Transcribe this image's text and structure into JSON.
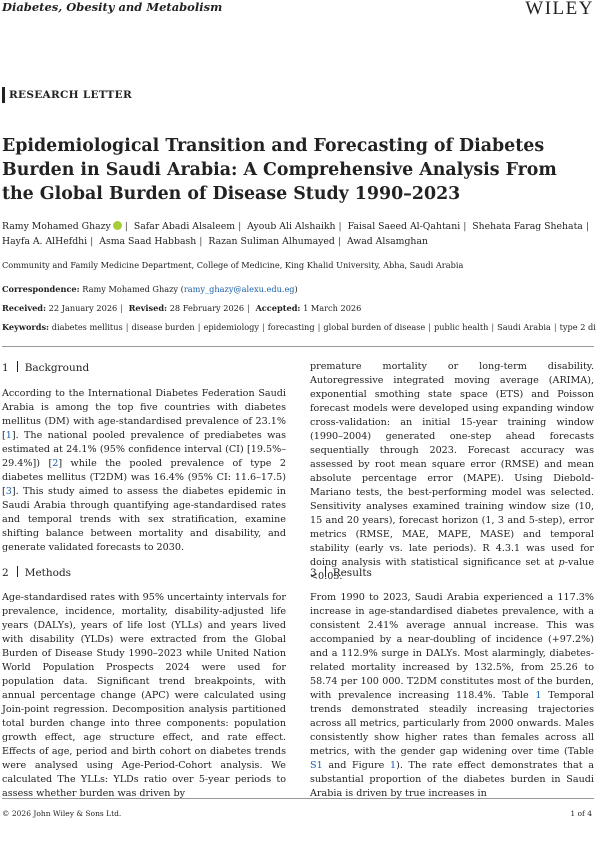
{
  "header": {
    "journal": "Diabetes, Obesity and Metabolism",
    "publisher": "WILEY"
  },
  "article_type": "RESEARCH LETTER",
  "title": "Epidemiological Transition and Forecasting of Diabetes Burden in Saudi Arabia: A Comprehensive Analysis From the Global Burden of Disease Study 1990–2023",
  "authors": [
    "Ramy Mohamed Ghazy",
    "Safar Abadi Alsaleem",
    "Ayoub Ali Alshaikh",
    "Faisal Saeed Al-Qahtani",
    "Shehata Farag Shehata",
    "Hayfa A. AlHefdhi",
    "Asma Saad Habbash",
    "Razan Suliman Alhumayed",
    "Awad Alsamghan"
  ],
  "affiliation": "Community and Family Medicine Department, College of Medicine, King Khalid University, Abha, Saudi Arabia",
  "correspondence": {
    "label": "Correspondence:",
    "name": "Ramy Mohamed Ghazy",
    "email": "ramy_ghazy@alexu.edu.eg"
  },
  "dates": {
    "received_label": "Received:",
    "received": "22 January 2026",
    "revised_label": "Revised:",
    "revised": "28 February 2026",
    "accepted_label": "Accepted:",
    "accepted": "1 March 2026"
  },
  "keywords": {
    "label": "Keywords:",
    "items": [
      "diabetes mellitus",
      "disease burden",
      "epidemiology",
      "forecasting",
      "global burden of disease",
      "public health",
      "Saudi Arabia",
      "type 2 diabetes"
    ]
  },
  "sections": {
    "background": {
      "number": "1",
      "heading": "Background",
      "p1a": "According to the International Diabetes Federation Saudi Arabia is among the top five countries with diabetes mellitus (DM) with age-standardised prevalence of 23.1% [",
      "r1": "1",
      "p1b": "]. The national pooled prevalence of prediabetes was estimated at 24.1% (95% confidence interval (CI) [19.5%–29.4%]) [",
      "r2": "2",
      "p1c": "] while the pooled prevalence of type 2 diabetes mellitus (T2DM) was 16.4% (95% CI: 11.6–17.5) [",
      "r3": "3",
      "p1d": "]. This study aimed to assess the diabetes epidemic in Saudi Arabia through quantifying age-standardised rates and temporal trends with sex stratification, examine shifting balance between mortality and disability, and generate validated forecasts to 2030."
    },
    "methods": {
      "number": "2",
      "heading": "Methods",
      "p1": "Age-standardised rates with 95% uncertainty intervals for prevalence, incidence, mortality, disability-adjusted life years (DALYs), years of life lost (YLLs) and years lived with disability (YLDs) were extracted from the Global Burden of Disease Study 1990–2023 while United Nation World Population Prospects 2024 were used for population data. Significant trend breakpoints, with annual percentage change (APC) were calculated using Join-point regression. Decomposition analysis partitioned total burden change into three components: population growth effect, age structure effect, and rate effect. Effects of age, period and birth cohort on diabetes trends were analysed using Age-Period-Cohort analysis. We calculated The YLLs: YLDs ratio over 5-year periods to assess whether burden was driven by"
    },
    "methods_cont": {
      "p1": "premature mortality or long-term disability. Autoregressive integrated moving average (ARIMA), exponential smothing state space (ETS) and Poisson forecast models were developed using expanding window cross-validation: an initial 15-year training window (1990–2004) generated one-step ahead forecasts sequentially through 2023. Forecast accuracy was assessed by root mean square error (RMSE) and mean absolute percentage error (MAPE). Using Diebold-Mariano tests, the best-performing model was selected. Sensitivity analyses examined training window size (10, 15 and 20 years), forecast horizon (1, 3 and 5-step), error metrics (RMSE, MAE, MAPE, MASE) and temporal stability (early vs. late periods). R 4.3.1 was used for doing analysis with statistical significance set at ",
      "pval_italic": "p",
      "pval_rest": "-value <0.05."
    },
    "results": {
      "number": "3",
      "heading": "Results",
      "p1a": "From 1990 to 2023, Saudi Arabia experienced a 117.3% increase in age-standardised diabetes prevalence, with a consistent 2.41% average annual increase. This was accompanied by a near-doubling of incidence (+97.2%) and a 112.9% surge in DALYs. Most alarmingly, diabetes-related mortality increased by 132.5%, from 25.26 to 58.74 per 100 000. T2DM constitutes most of the burden, with prevalence increasing 118.4%. Table ",
      "t1": "1",
      "p1b": " Temporal trends demonstrated steadily increasing trajectories across all metrics, particularly from 2000 onwards. Males consistently show higher rates than females across all metrics, with the gender gap widening over time (Table ",
      "s1": "S1",
      "p1c": " and Figure ",
      "f1": "1",
      "p1d": "). The rate effect demonstrates that a substantial proportion of the diabetes burden in Saudi Arabia is driven by true increases in"
    }
  },
  "footer": {
    "copyright": "© 2026 John Wiley & Sons Ltd.",
    "page": "1 of 4"
  }
}
